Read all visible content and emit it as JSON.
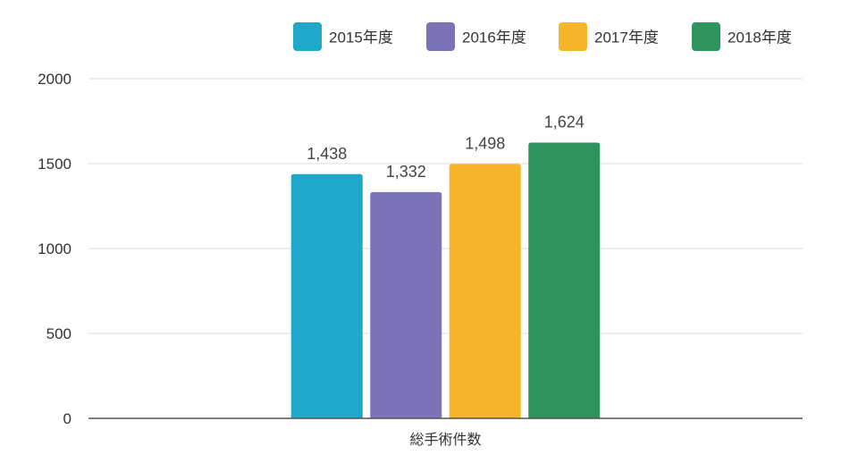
{
  "chart_data": {
    "type": "bar",
    "categories": [
      "総手術件数"
    ],
    "series": [
      {
        "name": "2015年度",
        "values": [
          1438
        ],
        "label": "1,438",
        "color": "#1fa8c9"
      },
      {
        "name": "2016年度",
        "values": [
          1332
        ],
        "label": "1,332",
        "color": "#7b72b8"
      },
      {
        "name": "2017年度",
        "values": [
          1498
        ],
        "label": "1,498",
        "color": "#f6b52b"
      },
      {
        "name": "2018年度",
        "values": [
          1624
        ],
        "label": "1,624",
        "color": "#2e935f"
      }
    ],
    "yticks": [
      "0",
      "500",
      "1000",
      "1500",
      "2000"
    ],
    "ylim": [
      0,
      2000
    ],
    "grid": true,
    "legend": "top-right"
  }
}
